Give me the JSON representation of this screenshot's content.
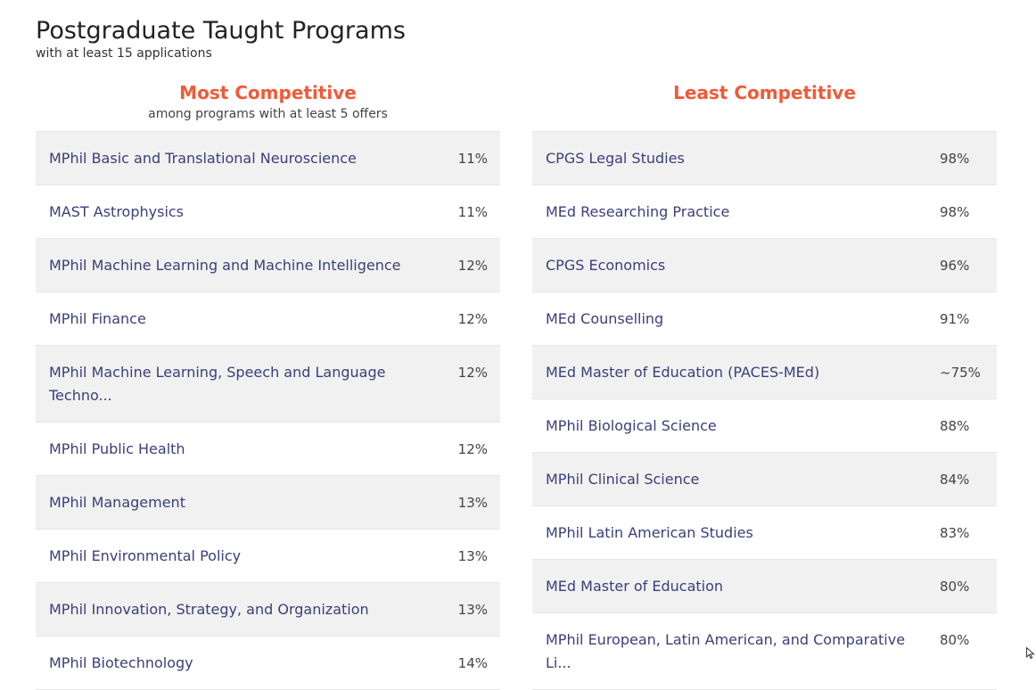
{
  "header": {
    "title": "Postgraduate Taught Programs",
    "subtitle": "with at least 15 applications"
  },
  "most_competitive": {
    "title": "Most Competitive",
    "subtitle": "among programs with at least 5 offers",
    "rows": [
      {
        "name": "MPhil Basic and Translational Neuroscience",
        "pct": "11%"
      },
      {
        "name": "MAST Astrophysics",
        "pct": "11%"
      },
      {
        "name": "MPhil Machine Learning and Machine Intelligence",
        "pct": "12%"
      },
      {
        "name": "MPhil Finance",
        "pct": "12%"
      },
      {
        "name": "MPhil Machine Learning, Speech and Language Techno...",
        "pct": "12%"
      },
      {
        "name": "MPhil Public Health",
        "pct": "12%"
      },
      {
        "name": "MPhil Management",
        "pct": "13%"
      },
      {
        "name": "MPhil Environmental Policy",
        "pct": "13%"
      },
      {
        "name": "MPhil Innovation, Strategy, and Organization",
        "pct": "13%"
      },
      {
        "name": "MPhil Biotechnology",
        "pct": "14%"
      }
    ]
  },
  "least_competitive": {
    "title": "Least Competitive",
    "rows": [
      {
        "name": "CPGS Legal Studies",
        "pct": "98%"
      },
      {
        "name": "MEd Researching Practice",
        "pct": "98%"
      },
      {
        "name": "CPGS Economics",
        "pct": "96%"
      },
      {
        "name": "MEd Counselling",
        "pct": "91%"
      },
      {
        "name": "MEd Master of Education (PACES-MEd)",
        "pct": "~75%"
      },
      {
        "name": "MPhil Biological Science",
        "pct": "88%"
      },
      {
        "name": "MPhil Clinical Science",
        "pct": "84%"
      },
      {
        "name": "MPhil Latin American Studies",
        "pct": "83%"
      },
      {
        "name": "MEd Master of Education",
        "pct": "80%"
      },
      {
        "name": "MPhil European, Latin American, and Comparative Li...",
        "pct": "80%"
      }
    ]
  },
  "colors": {
    "accent": "#f05a38",
    "link": "#3a3f7a",
    "row_shade": "#f1f1f1"
  },
  "icons": {
    "cursor": "mouse-pointer-icon"
  }
}
